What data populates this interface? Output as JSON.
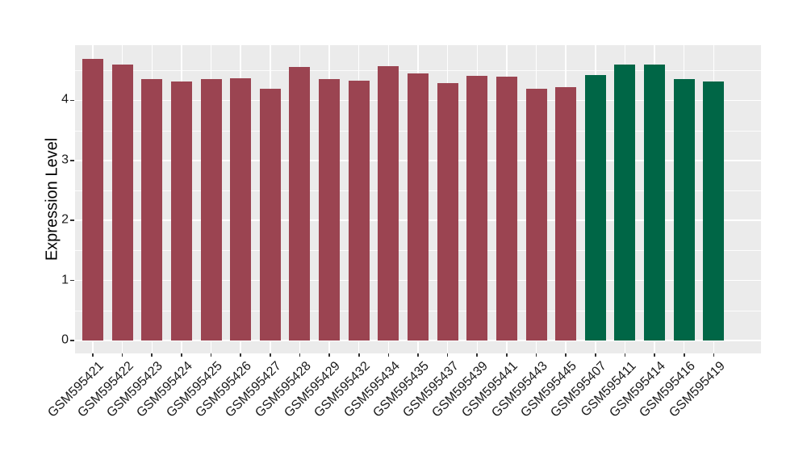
{
  "chart_data": {
    "type": "bar",
    "title": "",
    "ylabel": "Expression Level",
    "xlabel": "",
    "ylim": [
      0,
      4.93
    ],
    "yticks": [
      0,
      1,
      2,
      3,
      4
    ],
    "legend_position": "none",
    "grid": "white major and minor horizontal lines plus vertical category lines on gray panel",
    "x_tick_label_rotation_deg": 45,
    "categories": [
      "GSM595421",
      "GSM595422",
      "GSM595423",
      "GSM595424",
      "GSM595425",
      "GSM595426",
      "GSM595427",
      "GSM595428",
      "GSM595429",
      "GSM595432",
      "GSM595434",
      "GSM595435",
      "GSM595437",
      "GSM595439",
      "GSM595441",
      "GSM595443",
      "GSM595445",
      "GSM595407",
      "GSM595411",
      "GSM595414",
      "GSM595416",
      "GSM595419"
    ],
    "values": [
      4.69,
      4.6,
      4.35,
      4.31,
      4.35,
      4.37,
      4.2,
      4.56,
      4.35,
      4.33,
      4.57,
      4.45,
      4.29,
      4.41,
      4.39,
      4.2,
      4.22,
      4.42,
      4.6,
      4.6,
      4.35,
      4.31
    ],
    "bar_groups": [
      "red",
      "red",
      "red",
      "red",
      "red",
      "red",
      "red",
      "red",
      "red",
      "red",
      "red",
      "red",
      "red",
      "red",
      "red",
      "red",
      "red",
      "green",
      "green",
      "green",
      "green",
      "green"
    ],
    "group_colors": {
      "red": "#9B4451",
      "green": "#006646"
    }
  },
  "style": {
    "figure_bg": "#FFFFFF",
    "panel_bg": "#EBEBEB",
    "grid_color": "#FFFFFF",
    "tick_mark_color": "#333333",
    "axis_text_color": "#1A1A1A",
    "axis_title_color": "#000000"
  }
}
